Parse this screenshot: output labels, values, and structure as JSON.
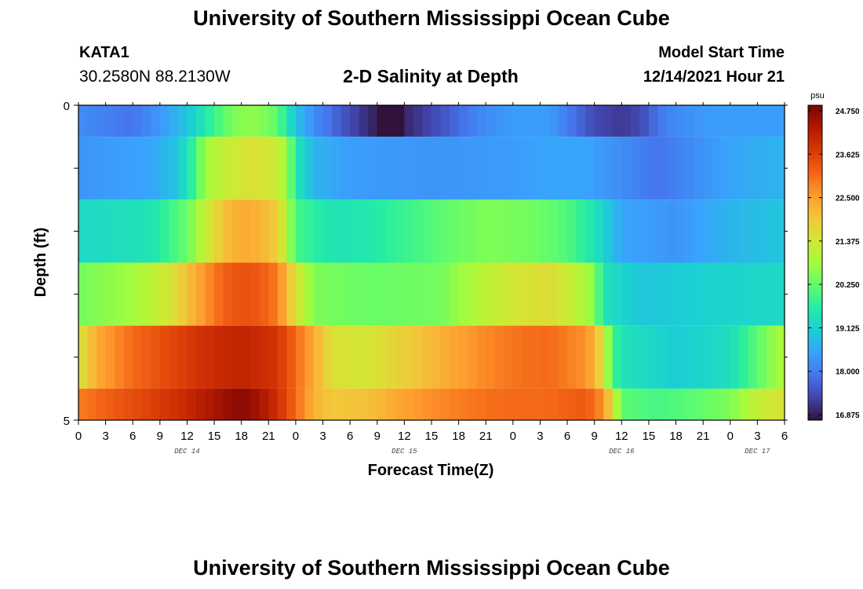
{
  "header": {
    "title": "University of Southern Mississippi Ocean Cube",
    "station_id": "KATA1",
    "station_coords": "30.2580N  88.2130W",
    "subtitle": "2-D Salinity at Depth",
    "model_start_label": "Model Start Time",
    "model_start_value": "12/14/2021 Hour 21"
  },
  "footer": {
    "title": "University of Southern Mississippi Ocean Cube"
  },
  "chart_data": {
    "type": "heatmap",
    "title": "2-D Salinity at Depth",
    "xlabel": "Forecast Time(Z)",
    "ylabel": "Depth (ft)",
    "x_tick_labels": [
      "0",
      "3",
      "6",
      "9",
      "12",
      "15",
      "18",
      "21",
      "0",
      "3",
      "6",
      "9",
      "12",
      "15",
      "18",
      "21",
      "0",
      "3",
      "6",
      "9",
      "12",
      "15",
      "18",
      "21",
      "0",
      "3",
      "6"
    ],
    "date_labels": [
      {
        "label": "DEC 14",
        "hour": 12
      },
      {
        "label": "DEC 15",
        "hour": 36
      },
      {
        "label": "DEC 16",
        "hour": 60
      },
      {
        "label": "DEC 17",
        "hour": 75
      }
    ],
    "x_range_hours": [
      0,
      78
    ],
    "y_tick_labels": [
      "0",
      "5"
    ],
    "y_range": [
      0,
      5
    ],
    "colorbar": {
      "unit": "psu",
      "min": 16.875,
      "max": 24.75,
      "ticks": [
        "24.750",
        "23.625",
        "22.500",
        "21.375",
        "20.250",
        "19.125",
        "18.000",
        "16.875"
      ],
      "colors": [
        "#30123b",
        "#4145ab",
        "#4675ed",
        "#39a2fc",
        "#1bcfd4",
        "#24eca6",
        "#61fc6c",
        "#a4fc3b",
        "#d1e834",
        "#f3c63a",
        "#fe9b2d",
        "#f36315",
        "#d93806",
        "#b11901",
        "#7a0402"
      ]
    },
    "depth_bands": [
      0,
      1,
      2,
      3,
      4,
      5
    ],
    "time_step_hours": 1,
    "keyframes": [
      {
        "depth_band": "0-0.5",
        "points": [
          [
            0,
            18.3
          ],
          [
            6,
            18.0
          ],
          [
            10,
            18.6
          ],
          [
            12,
            19.0
          ],
          [
            14,
            19.6
          ],
          [
            16,
            20.2
          ],
          [
            18,
            20.6
          ],
          [
            20,
            20.6
          ],
          [
            22,
            20.2
          ],
          [
            23,
            19.6
          ],
          [
            24,
            19.0
          ],
          [
            26,
            18.3
          ],
          [
            30,
            17.5
          ],
          [
            33,
            17.0
          ],
          [
            34,
            16.5
          ],
          [
            35,
            16.6
          ],
          [
            36,
            17.1
          ],
          [
            40,
            17.6
          ],
          [
            44,
            18.2
          ],
          [
            48,
            18.5
          ],
          [
            52,
            18.5
          ],
          [
            54,
            18.1
          ],
          [
            57,
            17.5
          ],
          [
            60,
            17.3
          ],
          [
            62,
            17.5
          ],
          [
            65,
            18.2
          ],
          [
            70,
            18.5
          ],
          [
            78,
            18.5
          ]
        ]
      },
      {
        "depth_band": "0.5-1.5",
        "points": [
          [
            0,
            18.4
          ],
          [
            8,
            18.6
          ],
          [
            11,
            19.0
          ],
          [
            13,
            20.0
          ],
          [
            14,
            20.8
          ],
          [
            16,
            21.2
          ],
          [
            19,
            21.5
          ],
          [
            22,
            21.3
          ],
          [
            23,
            20.8
          ],
          [
            24,
            19.6
          ],
          [
            26,
            18.8
          ],
          [
            30,
            18.5
          ],
          [
            40,
            18.4
          ],
          [
            48,
            18.5
          ],
          [
            52,
            18.6
          ],
          [
            56,
            18.6
          ],
          [
            60,
            18.3
          ],
          [
            64,
            18.0
          ],
          [
            68,
            18.3
          ],
          [
            72,
            18.6
          ],
          [
            78,
            18.8
          ]
        ]
      },
      {
        "depth_band": "1.5-2.5",
        "points": [
          [
            0,
            19.3
          ],
          [
            8,
            19.5
          ],
          [
            12,
            20.3
          ],
          [
            14,
            21.2
          ],
          [
            16,
            22.0
          ],
          [
            18,
            22.3
          ],
          [
            20,
            22.2
          ],
          [
            22,
            21.8
          ],
          [
            23,
            21.0
          ],
          [
            24,
            20.0
          ],
          [
            28,
            19.5
          ],
          [
            32,
            19.6
          ],
          [
            36,
            19.9
          ],
          [
            40,
            20.2
          ],
          [
            45,
            20.5
          ],
          [
            50,
            20.4
          ],
          [
            54,
            20.1
          ],
          [
            57,
            19.5
          ],
          [
            60,
            18.6
          ],
          [
            66,
            18.4
          ],
          [
            72,
            18.8
          ],
          [
            78,
            19.0
          ]
        ]
      },
      {
        "depth_band": "2.5-3.5",
        "points": [
          [
            0,
            20.4
          ],
          [
            6,
            20.8
          ],
          [
            10,
            21.4
          ],
          [
            13,
            22.3
          ],
          [
            16,
            23.1
          ],
          [
            18,
            23.3
          ],
          [
            20,
            23.2
          ],
          [
            22,
            22.8
          ],
          [
            24,
            21.5
          ],
          [
            26,
            20.5
          ],
          [
            32,
            20.3
          ],
          [
            40,
            20.4
          ],
          [
            44,
            21.0
          ],
          [
            48,
            21.4
          ],
          [
            52,
            21.6
          ],
          [
            55,
            21.1
          ],
          [
            57,
            20.6
          ],
          [
            58,
            19.5
          ],
          [
            62,
            19.0
          ],
          [
            70,
            19.2
          ],
          [
            78,
            19.3
          ]
        ]
      },
      {
        "depth_band": "3.5-4.5",
        "points": [
          [
            0,
            21.4
          ],
          [
            2,
            22.3
          ],
          [
            6,
            23.0
          ],
          [
            10,
            23.4
          ],
          [
            14,
            23.8
          ],
          [
            18,
            24.0
          ],
          [
            22,
            23.7
          ],
          [
            24,
            23.0
          ],
          [
            26,
            22.3
          ],
          [
            28,
            21.5
          ],
          [
            32,
            21.4
          ],
          [
            36,
            21.8
          ],
          [
            40,
            22.2
          ],
          [
            44,
            22.6
          ],
          [
            48,
            22.9
          ],
          [
            52,
            23.0
          ],
          [
            56,
            22.6
          ],
          [
            57,
            22.2
          ],
          [
            58,
            21.4
          ],
          [
            59,
            20.0
          ],
          [
            60,
            19.5
          ],
          [
            66,
            19.1
          ],
          [
            72,
            19.4
          ],
          [
            75,
            20.2
          ],
          [
            78,
            21.0
          ]
        ]
      },
      {
        "depth_band": "4.5-5",
        "points": [
          [
            0,
            22.8
          ],
          [
            4,
            23.2
          ],
          [
            8,
            23.5
          ],
          [
            12,
            23.9
          ],
          [
            16,
            24.4
          ],
          [
            18,
            24.6
          ],
          [
            20,
            24.3
          ],
          [
            22,
            23.8
          ],
          [
            24,
            23.0
          ],
          [
            26,
            22.2
          ],
          [
            28,
            21.9
          ],
          [
            32,
            22.0
          ],
          [
            36,
            22.4
          ],
          [
            40,
            22.7
          ],
          [
            44,
            22.9
          ],
          [
            48,
            23.0
          ],
          [
            52,
            23.0
          ],
          [
            56,
            23.2
          ],
          [
            58,
            22.6
          ],
          [
            59,
            21.5
          ],
          [
            60,
            20.2
          ],
          [
            64,
            20.0
          ],
          [
            68,
            20.2
          ],
          [
            72,
            20.5
          ],
          [
            75,
            21.2
          ],
          [
            78,
            21.5
          ]
        ]
      }
    ]
  }
}
